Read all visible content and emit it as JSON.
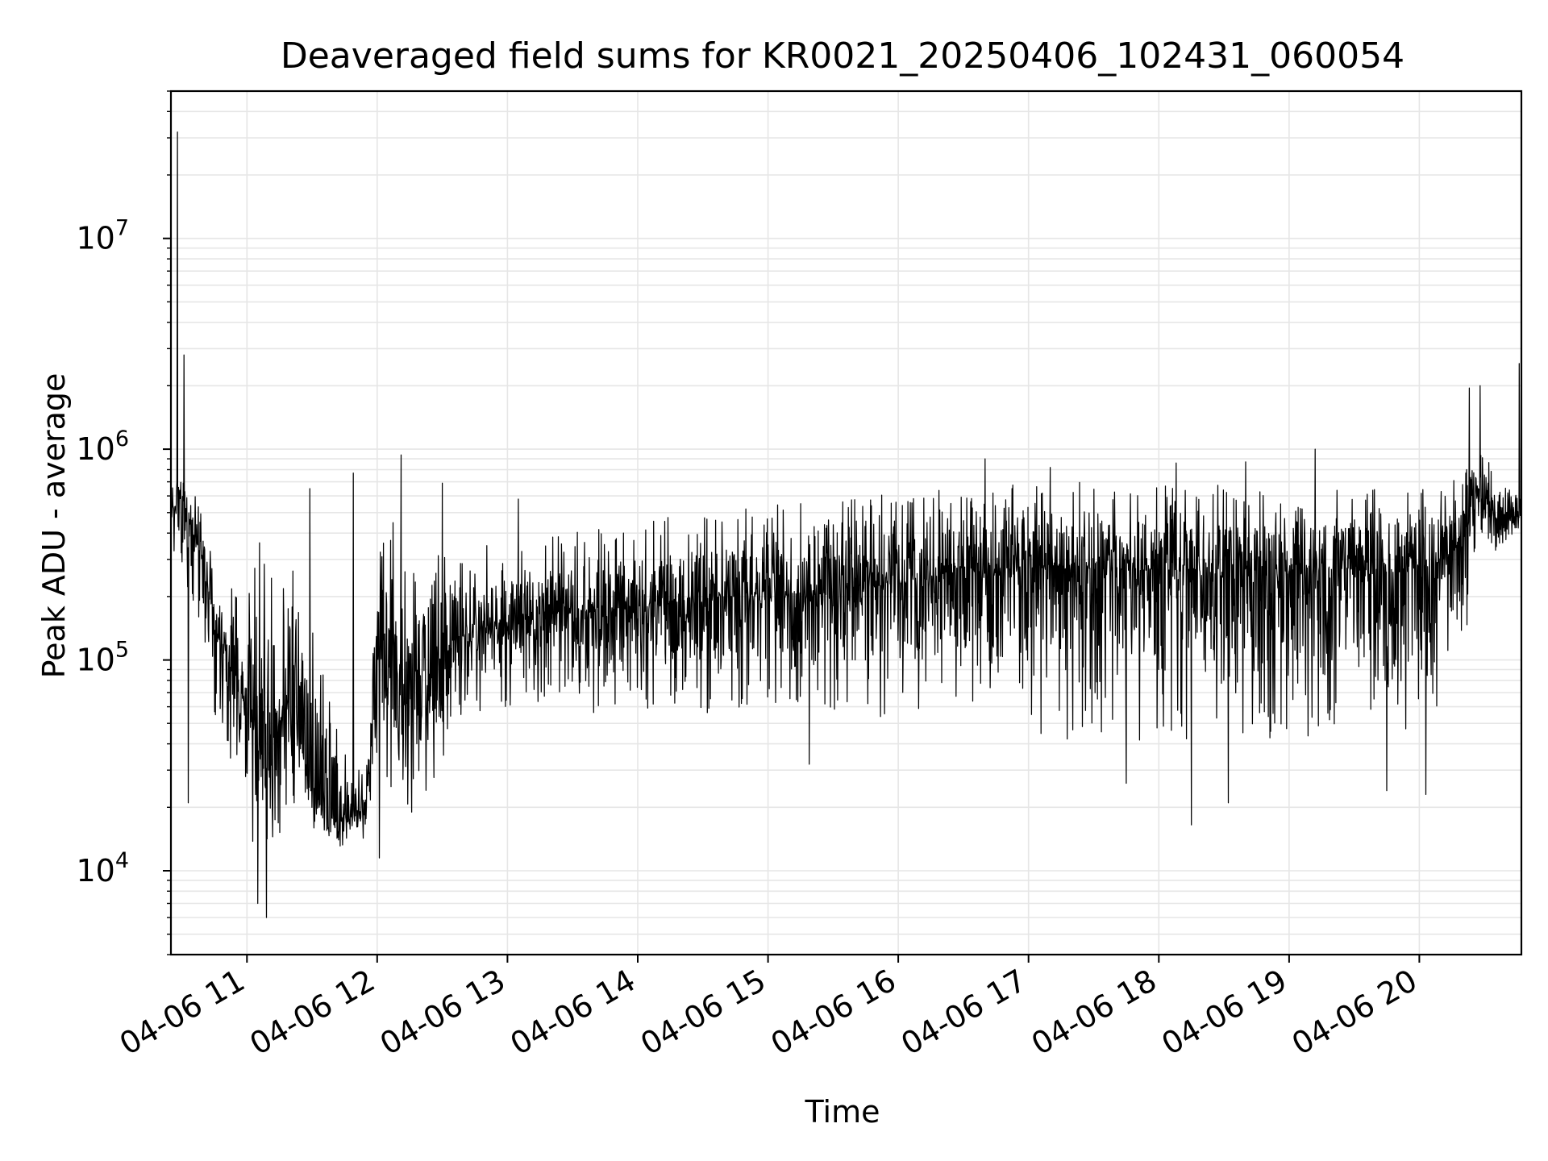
{
  "chart_data": {
    "type": "line",
    "title": "Deaveraged field sums for KR0021_20250406_102431_060054",
    "xlabel": "Time",
    "ylabel": "Peak ADU - average",
    "yscale": "log",
    "ylim": [
      4000,
      50000000
    ],
    "xlim": [
      "04-06 10:25",
      "04-06 20:47"
    ],
    "grid": true,
    "line_color": "#000000",
    "x_ticks": [
      "04-06 11",
      "04-06 12",
      "04-06 13",
      "04-06 14",
      "04-06 15",
      "04-06 16",
      "04-06 17",
      "04-06 18",
      "04-06 19",
      "04-06 20"
    ],
    "y_ticks": [
      {
        "base": "10",
        "exp": "4",
        "value": 10000
      },
      {
        "base": "10",
        "exp": "5",
        "value": 100000
      },
      {
        "base": "10",
        "exp": "6",
        "value": 1000000
      },
      {
        "base": "10",
        "exp": "7",
        "value": 10000000
      }
    ],
    "series": [
      {
        "x": [
          "04-06 10:25",
          "04-06 10:30",
          "04-06 10:35",
          "04-06 10:40",
          "04-06 10:45",
          "04-06 10:50",
          "04-06 10:55",
          "04-06 11:00",
          "04-06 11:05",
          "04-06 11:10",
          "04-06 11:15",
          "04-06 11:20",
          "04-06 11:25",
          "04-06 11:30",
          "04-06 11:35",
          "04-06 11:40",
          "04-06 11:45",
          "04-06 11:50",
          "04-06 11:55",
          "04-06 12:00",
          "04-06 12:05",
          "04-06 12:10",
          "04-06 12:15",
          "04-06 12:20",
          "04-06 12:25",
          "04-06 12:30",
          "04-06 12:35",
          "04-06 12:40",
          "04-06 12:45",
          "04-06 12:50",
          "04-06 12:55",
          "04-06 13:00",
          "04-06 13:15",
          "04-06 13:30",
          "04-06 13:45",
          "04-06 14:00",
          "04-06 14:15",
          "04-06 14:30",
          "04-06 14:45",
          "04-06 15:00",
          "04-06 15:15",
          "04-06 15:30",
          "04-06 15:45",
          "04-06 16:00",
          "04-06 16:15",
          "04-06 16:30",
          "04-06 16:45",
          "04-06 17:00",
          "04-06 17:15",
          "04-06 17:30",
          "04-06 17:45",
          "04-06 18:00",
          "04-06 18:15",
          "04-06 18:30",
          "04-06 18:45",
          "04-06 19:00",
          "04-06 19:15",
          "04-06 19:30",
          "04-06 19:45",
          "04-06 20:00",
          "04-06 20:10",
          "04-06 20:20",
          "04-06 20:25",
          "04-06 20:30",
          "04-06 20:35",
          "04-06 20:40",
          "04-06 20:45"
        ],
        "y": [
          500000,
          600000,
          400000,
          300000,
          150000,
          100000,
          80000,
          60000,
          40000,
          30000,
          50000,
          80000,
          40000,
          25000,
          20000,
          18000,
          17000,
          18000,
          20000,
          100000,
          150000,
          80000,
          60000,
          70000,
          90000,
          100000,
          120000,
          130000,
          140000,
          145000,
          150000,
          150000,
          160000,
          170000,
          175000,
          180000,
          190000,
          200000,
          200000,
          210000,
          200000,
          210000,
          220000,
          230000,
          250000,
          260000,
          270000,
          270000,
          280000,
          270000,
          270000,
          260000,
          270000,
          260000,
          250000,
          260000,
          270000,
          270000,
          260000,
          280000,
          300000,
          350000,
          600000,
          700000,
          450000,
          500000,
          480000
        ],
        "upper": [
          900000,
          700000,
          650000,
          500000,
          300000,
          250000,
          200000,
          300000,
          450000,
          400000,
          300000,
          450000,
          350000,
          200000,
          100000,
          80000,
          40000,
          30000,
          30000,
          350000,
          450000,
          450000,
          350000,
          320000,
          330000,
          350000,
          350000,
          350000,
          350000,
          360000,
          370000,
          380000,
          400000,
          420000,
          440000,
          460000,
          480000,
          500000,
          520000,
          540000,
          560000,
          580000,
          600000,
          620000,
          640000,
          660000,
          680000,
          700000,
          700000,
          700000,
          700000,
          680000,
          700000,
          680000,
          660000,
          660000,
          680000,
          680000,
          680000,
          700000,
          720000,
          780000,
          900000,
          1000000,
          700000,
          650000,
          700000
        ],
        "lower": [
          300000,
          200000,
          150000,
          100000,
          50000,
          40000,
          25000,
          15000,
          10000,
          9000,
          12000,
          20000,
          20000,
          15000,
          14000,
          13000,
          13000,
          13000,
          14000,
          30000,
          20000,
          16000,
          16000,
          18000,
          25000,
          30000,
          40000,
          50000,
          55000,
          60000,
          60000,
          60000,
          60000,
          55000,
          55000,
          55000,
          55000,
          55000,
          55000,
          55000,
          55000,
          55000,
          50000,
          50000,
          48000,
          48000,
          47000,
          45000,
          42000,
          42000,
          42000,
          40000,
          42000,
          42000,
          42000,
          42000,
          42000,
          42000,
          42000,
          45000,
          50000,
          90000,
          300000,
          350000,
          320000,
          320000,
          330000
        ],
        "spikes": [
          {
            "x": "04-06 10:28",
            "y": 32000000
          },
          {
            "x": "04-06 10:31",
            "y": 2800000
          },
          {
            "x": "04-06 11:29",
            "y": 650000
          },
          {
            "x": "04-06 11:49",
            "y": 770000
          },
          {
            "x": "04-06 12:11",
            "y": 940000
          },
          {
            "x": "04-06 12:30",
            "y": 690000
          },
          {
            "x": "04-06 13:05",
            "y": 580000
          },
          {
            "x": "04-06 16:40",
            "y": 900000
          },
          {
            "x": "04-06 17:10",
            "y": 820000
          },
          {
            "x": "04-06 18:08",
            "y": 860000
          },
          {
            "x": "04-06 18:40",
            "y": 870000
          },
          {
            "x": "04-06 19:12",
            "y": 1000000
          },
          {
            "x": "04-06 20:23",
            "y": 1950000
          },
          {
            "x": "04-06 20:28",
            "y": 2000000
          },
          {
            "x": "04-06 20:46",
            "y": 2550000
          }
        ],
        "dips": [
          {
            "x": "04-06 10:33",
            "y": 21000
          },
          {
            "x": "04-06 11:05",
            "y": 7000
          },
          {
            "x": "04-06 11:09",
            "y": 6000
          },
          {
            "x": "04-06 12:01",
            "y": 11500
          },
          {
            "x": "04-06 15:19",
            "y": 32000
          },
          {
            "x": "04-06 17:45",
            "y": 26000
          },
          {
            "x": "04-06 18:15",
            "y": 16500
          },
          {
            "x": "04-06 18:32",
            "y": 21000
          },
          {
            "x": "04-06 19:45",
            "y": 24000
          },
          {
            "x": "04-06 20:03",
            "y": 23000
          }
        ]
      }
    ]
  }
}
